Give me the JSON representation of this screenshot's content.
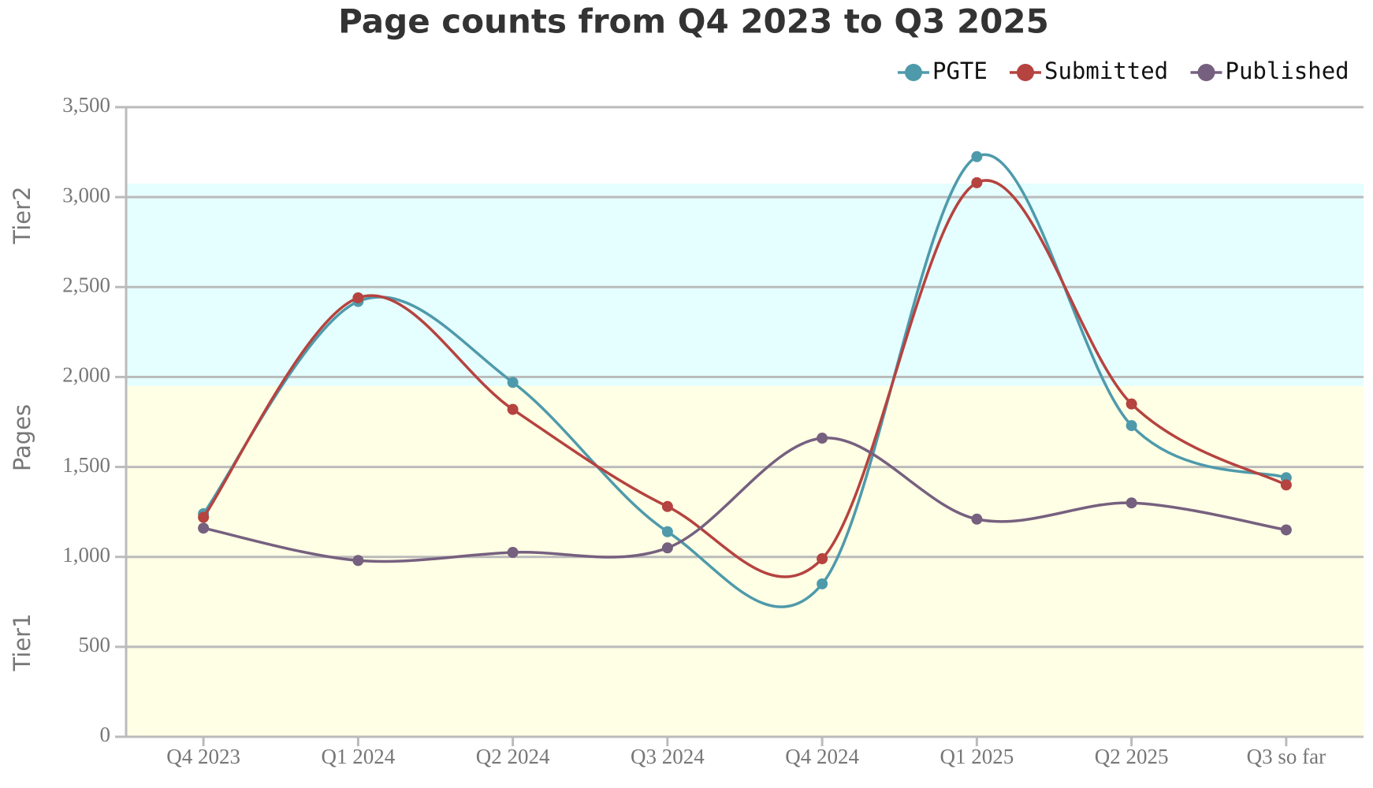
{
  "chart_data": {
    "type": "line",
    "title": "Page counts from Q4 2023 to Q3 2025",
    "y_label": "Pages",
    "categories": [
      "Q4 2023",
      "Q1 2024",
      "Q2 2024",
      "Q3 2024",
      "Q4 2024",
      "Q1 2025",
      "Q2 2025",
      "Q3 so far"
    ],
    "series": [
      {
        "name": "PGTE",
        "color": "#4e9aab",
        "values": [
          1240,
          2420,
          1970,
          1140,
          850,
          3225,
          1730,
          1440
        ]
      },
      {
        "name": "Submitted",
        "color": "#b5433f",
        "values": [
          1220,
          2440,
          1820,
          1280,
          990,
          3080,
          1850,
          1400
        ]
      },
      {
        "name": "Published",
        "color": "#76607f",
        "values": [
          1160,
          980,
          1025,
          1050,
          1660,
          1210,
          1300,
          1150
        ]
      }
    ],
    "bands": [
      {
        "label": "Tier1",
        "from": 0,
        "to": 1950,
        "color": "#ffffe5"
      },
      {
        "label": "Tier2",
        "from": 1950,
        "to": 3075,
        "color": "#e5feff"
      }
    ],
    "ylim": [
      0,
      3500
    ],
    "yticks": [
      0,
      500,
      {
        "value": 1000,
        "label": "1,000"
      },
      {
        "value": 1500,
        "label": "1,500"
      },
      {
        "value": 2000,
        "label": "2,000"
      },
      {
        "value": 2500,
        "label": "2,500"
      },
      {
        "value": 3000,
        "label": "3,000"
      },
      {
        "value": 3500,
        "label": "3,500"
      }
    ],
    "grid": true,
    "smooth": true,
    "legend": "top-right"
  }
}
